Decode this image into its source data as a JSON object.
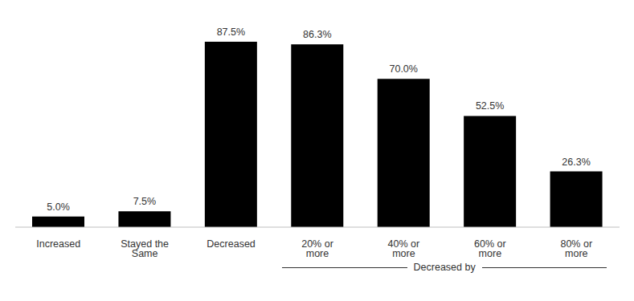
{
  "chart_data": {
    "type": "bar",
    "categories": [
      "Increased",
      "Stayed the Same",
      "Decreased",
      "20% or more",
      "40% or more",
      "60% or more",
      "80% or more"
    ],
    "values": [
      5.0,
      7.5,
      87.5,
      86.3,
      70.0,
      52.5,
      26.3
    ],
    "value_labels": [
      "5.0%",
      "7.5%",
      "87.5%",
      "86.3%",
      "70.0%",
      "52.5%",
      "26.3%"
    ],
    "data_labels": true,
    "color": "#000000",
    "ylim": [
      0,
      100
    ],
    "tick_labels": "x",
    "grid": false,
    "annotations": [
      {
        "text": "Decreased by",
        "span": [
          "20% or more",
          "80% or more"
        ]
      }
    ]
  }
}
